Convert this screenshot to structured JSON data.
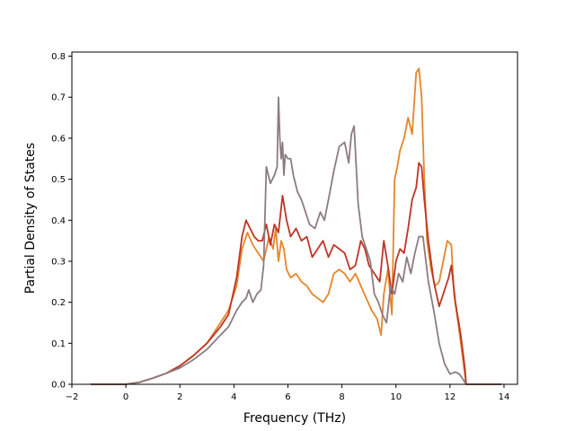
{
  "chart_data": {
    "type": "line",
    "title": "",
    "xlabel": "Frequency (THz)",
    "ylabel": "Partial Density of States",
    "xlim": [
      -2,
      14.5
    ],
    "ylim": [
      0,
      0.81
    ],
    "xticks": [
      -2,
      0,
      2,
      4,
      6,
      8,
      10,
      12,
      14
    ],
    "yticks": [
      0.0,
      0.1,
      0.2,
      0.3,
      0.4,
      0.5,
      0.6,
      0.7,
      0.8
    ],
    "xtick_labels": [
      "−2",
      "0",
      "2",
      "4",
      "6",
      "8",
      "10",
      "12",
      "14"
    ],
    "ytick_labels": [
      "0.0",
      "0.1",
      "0.2",
      "0.3",
      "0.4",
      "0.5",
      "0.6",
      "0.7",
      "0.8"
    ],
    "grid": false,
    "legend": "none",
    "series": [
      {
        "color": "#e6852a",
        "x": [
          -1.3,
          0.0,
          0.5,
          1.0,
          1.5,
          2.0,
          2.5,
          3.0,
          3.5,
          3.8,
          4.1,
          4.3,
          4.5,
          4.7,
          4.9,
          5.1,
          5.3,
          5.45,
          5.55,
          5.65,
          5.75,
          5.85,
          5.95,
          6.1,
          6.3,
          6.5,
          6.7,
          6.9,
          7.1,
          7.3,
          7.5,
          7.7,
          7.9,
          8.1,
          8.3,
          8.5,
          8.7,
          8.9,
          9.1,
          9.3,
          9.45,
          9.55,
          9.7,
          9.85,
          9.95,
          10.05,
          10.15,
          10.3,
          10.45,
          10.6,
          10.75,
          10.85,
          10.95,
          11.05,
          11.15,
          11.3,
          11.45,
          11.6,
          11.75,
          11.9,
          12.05,
          12.15,
          12.3,
          12.5,
          12.6,
          13.9
        ],
        "y": [
          0.0,
          0.0,
          0.005,
          0.015,
          0.027,
          0.045,
          0.07,
          0.1,
          0.15,
          0.18,
          0.24,
          0.33,
          0.37,
          0.34,
          0.32,
          0.3,
          0.36,
          0.33,
          0.38,
          0.3,
          0.35,
          0.33,
          0.28,
          0.26,
          0.27,
          0.25,
          0.24,
          0.22,
          0.21,
          0.2,
          0.22,
          0.27,
          0.28,
          0.27,
          0.25,
          0.27,
          0.24,
          0.21,
          0.18,
          0.16,
          0.12,
          0.22,
          0.28,
          0.17,
          0.5,
          0.53,
          0.57,
          0.6,
          0.65,
          0.61,
          0.76,
          0.77,
          0.7,
          0.5,
          0.35,
          0.28,
          0.24,
          0.25,
          0.3,
          0.35,
          0.34,
          0.22,
          0.15,
          0.05,
          0.0,
          0.0
        ]
      },
      {
        "color": "#bf3425",
        "x": [
          -1.3,
          0.0,
          0.5,
          1.0,
          1.5,
          2.0,
          2.5,
          3.0,
          3.5,
          3.8,
          4.1,
          4.3,
          4.45,
          4.6,
          4.75,
          4.9,
          5.05,
          5.2,
          5.35,
          5.5,
          5.65,
          5.8,
          5.95,
          6.1,
          6.3,
          6.5,
          6.7,
          6.9,
          7.1,
          7.3,
          7.5,
          7.7,
          7.9,
          8.1,
          8.3,
          8.5,
          8.7,
          8.85,
          9.0,
          9.2,
          9.4,
          9.55,
          9.7,
          9.85,
          10.0,
          10.15,
          10.3,
          10.45,
          10.6,
          10.75,
          10.85,
          10.95,
          11.05,
          11.2,
          11.4,
          11.6,
          11.8,
          11.95,
          12.05,
          12.2,
          12.4,
          12.55,
          12.6,
          13.9
        ],
        "y": [
          0.0,
          0.0,
          0.005,
          0.015,
          0.027,
          0.045,
          0.07,
          0.1,
          0.14,
          0.17,
          0.26,
          0.36,
          0.4,
          0.38,
          0.36,
          0.35,
          0.35,
          0.39,
          0.34,
          0.39,
          0.37,
          0.46,
          0.4,
          0.36,
          0.38,
          0.35,
          0.36,
          0.31,
          0.33,
          0.35,
          0.31,
          0.34,
          0.33,
          0.32,
          0.28,
          0.29,
          0.35,
          0.33,
          0.29,
          0.27,
          0.25,
          0.35,
          0.29,
          0.22,
          0.3,
          0.33,
          0.32,
          0.38,
          0.45,
          0.48,
          0.54,
          0.53,
          0.45,
          0.35,
          0.25,
          0.19,
          0.23,
          0.26,
          0.29,
          0.2,
          0.12,
          0.04,
          0.0,
          0.0
        ]
      },
      {
        "color": "#8c7c80",
        "x": [
          -1.3,
          0.0,
          0.5,
          1.0,
          1.5,
          2.0,
          2.5,
          3.0,
          3.5,
          3.8,
          4.1,
          4.3,
          4.45,
          4.55,
          4.7,
          4.85,
          5.0,
          5.1,
          5.2,
          5.35,
          5.5,
          5.6,
          5.65,
          5.7,
          5.75,
          5.8,
          5.85,
          5.9,
          6.0,
          6.1,
          6.2,
          6.35,
          6.5,
          6.65,
          6.8,
          7.0,
          7.2,
          7.35,
          7.5,
          7.7,
          7.9,
          8.1,
          8.25,
          8.35,
          8.45,
          8.6,
          8.75,
          8.9,
          9.05,
          9.2,
          9.35,
          9.5,
          9.65,
          9.8,
          9.95,
          10.1,
          10.25,
          10.4,
          10.55,
          10.7,
          10.85,
          11.0,
          11.2,
          11.4,
          11.6,
          11.8,
          12.0,
          12.2,
          12.35,
          12.5,
          12.6,
          13.9
        ],
        "y": [
          0.0,
          0.0,
          0.005,
          0.015,
          0.027,
          0.04,
          0.06,
          0.085,
          0.12,
          0.14,
          0.18,
          0.2,
          0.21,
          0.23,
          0.2,
          0.22,
          0.23,
          0.29,
          0.53,
          0.49,
          0.51,
          0.53,
          0.7,
          0.6,
          0.55,
          0.59,
          0.51,
          0.56,
          0.55,
          0.55,
          0.51,
          0.47,
          0.45,
          0.42,
          0.39,
          0.38,
          0.42,
          0.4,
          0.45,
          0.52,
          0.58,
          0.59,
          0.54,
          0.61,
          0.63,
          0.44,
          0.36,
          0.33,
          0.3,
          0.22,
          0.2,
          0.17,
          0.15,
          0.24,
          0.22,
          0.27,
          0.25,
          0.31,
          0.27,
          0.32,
          0.36,
          0.36,
          0.25,
          0.18,
          0.1,
          0.05,
          0.025,
          0.03,
          0.025,
          0.01,
          0.0,
          0.0
        ]
      }
    ]
  }
}
